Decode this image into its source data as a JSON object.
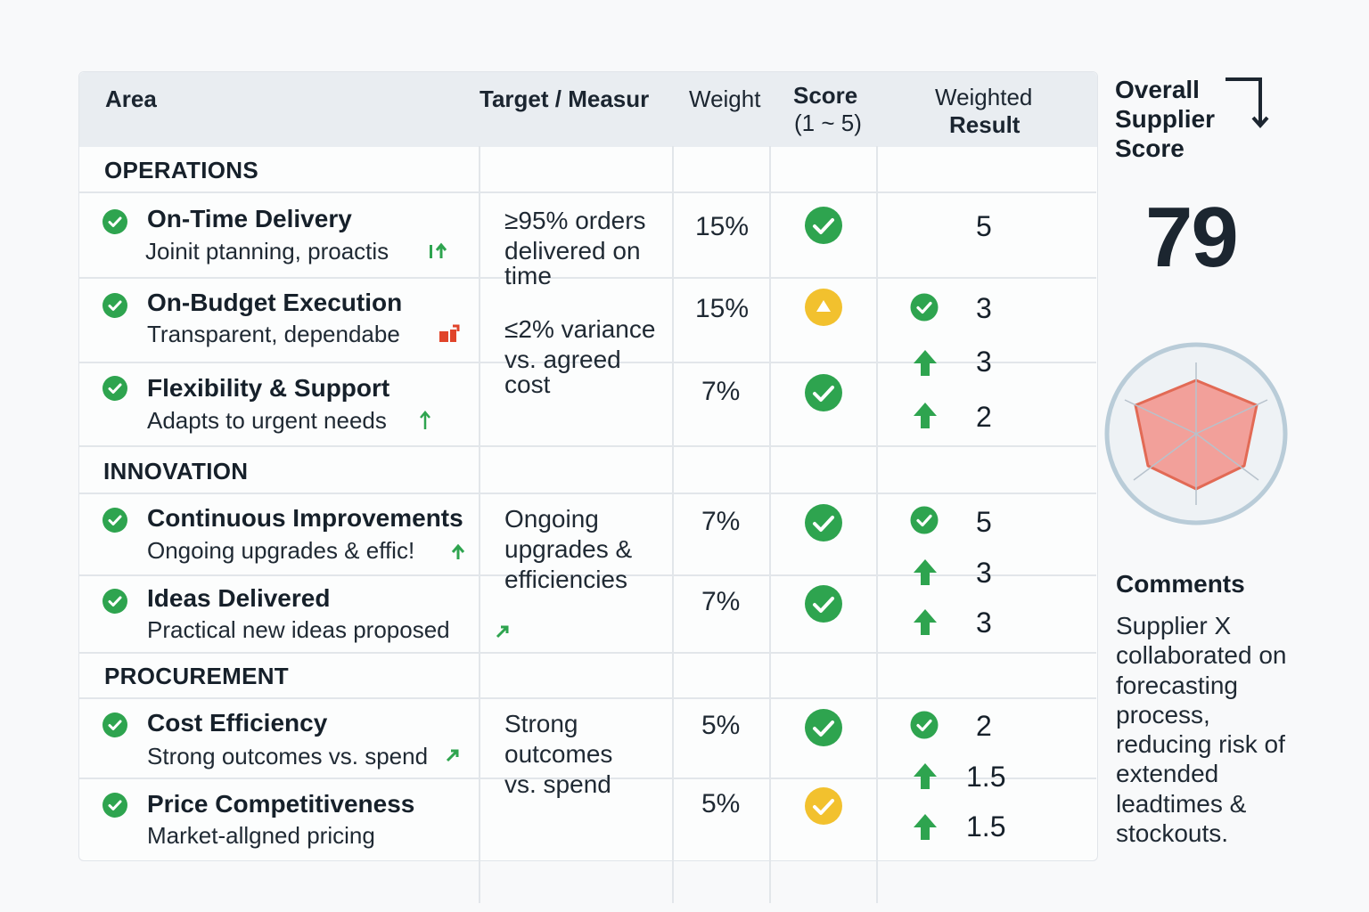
{
  "table": {
    "headers": {
      "area": "Area",
      "target": "Target / Measur",
      "weight": "Weight",
      "score_line1": "Score",
      "score_line2": "(1 ~ 5)",
      "weighted_line1": "Weighted",
      "weighted_line2": "Result"
    },
    "sections": {
      "operations": "OPERATIONS",
      "innovation": "INNOVATION",
      "procurement": "PROCUREMENT"
    },
    "rows": [
      {
        "title": "On-Time Delivery",
        "subtitle": "Joinit ptanning, proactis",
        "indicator": "up-arrow-icon",
        "weight": "15%",
        "score_icon": "check-circle-icon"
      },
      {
        "title": "On-Budget Execution",
        "subtitle": "Transparent, dependabe",
        "indicator": "red-arrow-icon",
        "weight": "15%",
        "score_icon": "warning-circle-icon"
      },
      {
        "title": "Flexibility & Support",
        "subtitle": "Adapts to urgent needs",
        "indicator": "up-arrow-icon",
        "weight": "7%",
        "score_icon": "check-circle-icon"
      },
      {
        "title": "Continuous Improvements",
        "subtitle": "Ongoing upgrades & effic!",
        "indicator": "up-arrow-icon",
        "weight": "7%",
        "score_icon": "check-circle-icon"
      },
      {
        "title": "Ideas Delivered",
        "subtitle": "Practical new ideas proposed",
        "indicator": "diagonal-arrow-icon",
        "weight": "7%",
        "score_icon": "check-circle-icon"
      },
      {
        "title": "Cost Efficiency",
        "subtitle": "Strong outcomes vs. spend",
        "indicator": "diagonal-arrow-icon",
        "weight": "5%",
        "score_icon": "check-circle-icon"
      },
      {
        "title": "Price Competitiveness",
        "subtitle": "Market-allgned pricing",
        "indicator": "",
        "weight": "5%",
        "score_icon": "yellow-check-circle-icon"
      }
    ],
    "targets": {
      "t1": [
        "≥95% orders",
        "delivered on",
        "time"
      ],
      "t2": [
        "≤2% variance",
        "vs. agreed",
        "cost"
      ],
      "t3": [
        "Ongoing",
        "upgrades &",
        "efficiencies"
      ],
      "t4": [
        "Strong",
        "outcomes",
        "vs. spend"
      ]
    },
    "weighted_results": [
      "5",
      "3",
      "3",
      "2",
      "5",
      "3",
      "3",
      "2",
      "1.5",
      "1.5"
    ],
    "colors": {
      "green": "#2ea44f",
      "yellow": "#f2c12e",
      "red": "#e0442a",
      "border": "#e2e6ea",
      "header_bg": "#e9edf1"
    }
  },
  "overall": {
    "title_lines": [
      "Overall",
      "Supplier",
      "Score"
    ],
    "value": "79",
    "arrow_icon": "corner-down-arrow-icon",
    "radar_icon": "radar-chart-icon"
  },
  "comments": {
    "title": "Comments",
    "lines": [
      "Supplier X",
      "collaborated on",
      "forecasting",
      "process,",
      "reducing risk of",
      "extended",
      "leadtimes &",
      "stockouts."
    ]
  }
}
